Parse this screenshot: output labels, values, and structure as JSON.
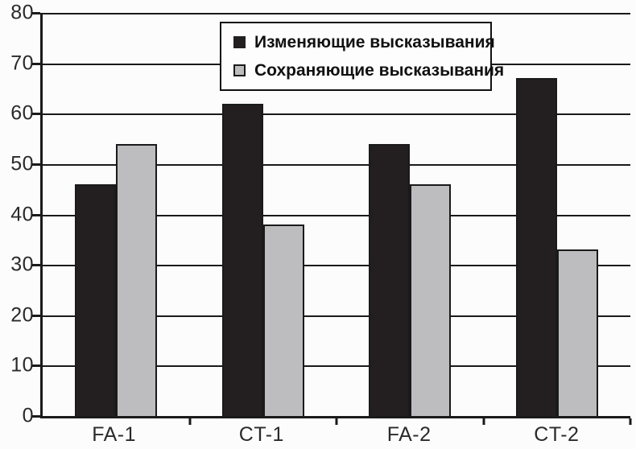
{
  "chart_data": {
    "type": "bar",
    "categories": [
      "FA-1",
      "CT-1",
      "FA-2",
      "CT-2"
    ],
    "series": [
      {
        "name": "Изменяющие высказывания",
        "color": "#231f20",
        "values": [
          46,
          62,
          54,
          67
        ]
      },
      {
        "name": "Сохраняющие высказывания",
        "color": "#bdbdc0",
        "values": [
          54,
          38,
          46,
          33
        ]
      }
    ],
    "xlabel": "",
    "ylabel": "",
    "title": "",
    "ylim": [
      0,
      80
    ],
    "yticks": [
      "0",
      "10",
      "20",
      "30",
      "40",
      "50",
      "60",
      "70",
      "80"
    ],
    "grid": "horizontal",
    "legend_position": "top-inside",
    "colors": {
      "axis": "#1a1a1a",
      "gridline": "#1a1a1a",
      "background": "#fcfcfc",
      "text": "#2a2a2a"
    }
  }
}
